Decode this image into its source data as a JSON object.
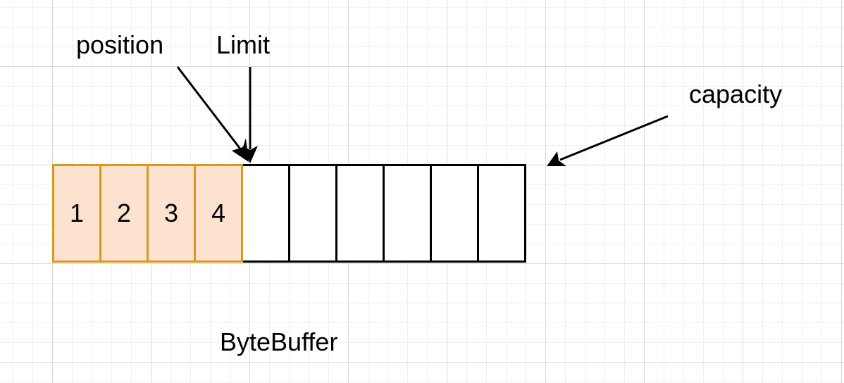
{
  "labels": {
    "position": "position",
    "limit": "Limit",
    "capacity": "capacity",
    "caption": "ByteBuffer"
  },
  "buffer": {
    "filled_cells": [
      "1",
      "2",
      "3",
      "4"
    ],
    "empty_cell_count": 6
  },
  "colors": {
    "filled_fill": "#fce2cf",
    "filled_stroke": "#d79b1c",
    "empty_stroke": "#000000",
    "grid": "#d9d9d9"
  }
}
